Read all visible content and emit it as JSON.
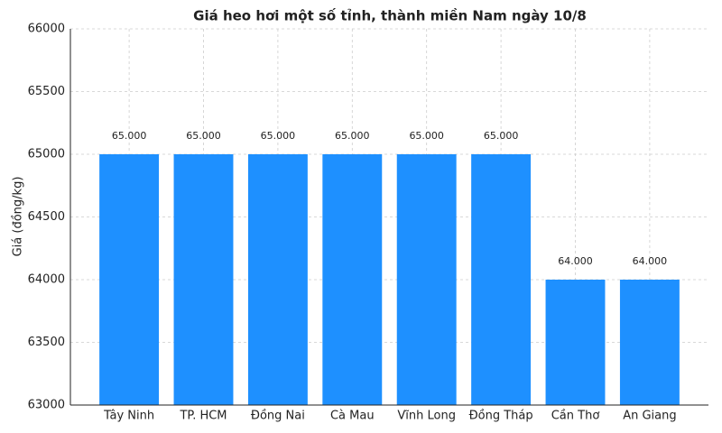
{
  "chart_data": {
    "type": "bar",
    "title": "Giá heo hơi một số tỉnh, thành miền Nam ngày 10/8",
    "y_label": "Giá (đồng/kg)",
    "categories": [
      "Tây Ninh",
      "TP. HCM",
      "Đồng Nai",
      "Cà Mau",
      "Vĩnh Long",
      "Đồng Tháp",
      "Cần Thơ",
      "An Giang"
    ],
    "values": [
      65000,
      65000,
      65000,
      65000,
      65000,
      65000,
      64000,
      64000
    ],
    "value_labels": [
      "65.000",
      "65.000",
      "65.000",
      "65.000",
      "65.000",
      "65.000",
      "64.000",
      "64.000"
    ],
    "color": "#1e90ff",
    "ylim": [
      63000,
      66000
    ],
    "yticks": [
      63000,
      63500,
      64000,
      64500,
      65000,
      65500,
      66000
    ],
    "grid": true
  }
}
